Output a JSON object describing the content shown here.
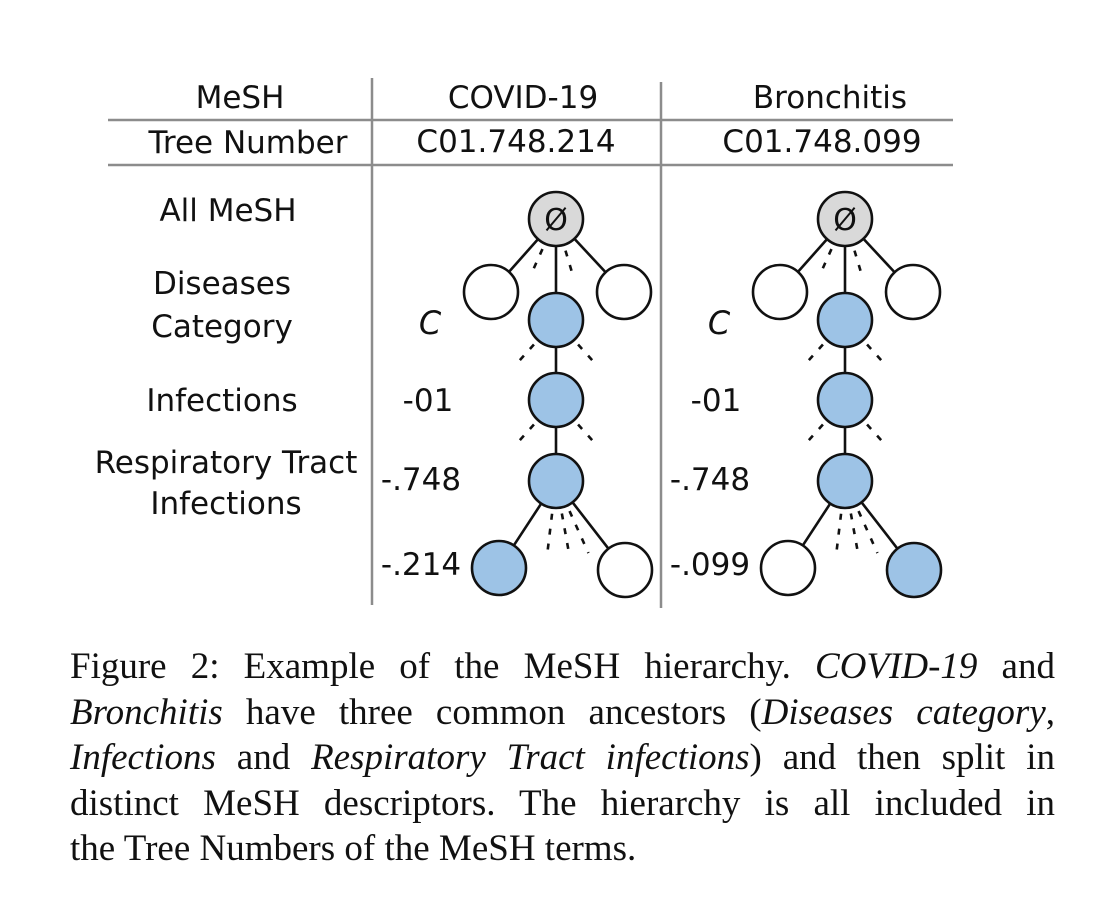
{
  "table": {
    "header": [
      "MeSH",
      "COVID-19",
      "Bronchitis"
    ],
    "tree_number_label": "Tree Number",
    "tree_numbers": [
      "C01.748.214",
      "C01.748.099"
    ]
  },
  "levels": [
    {
      "label_lines": [
        "All MeSH"
      ],
      "code_covid": "",
      "code_bronchitis": ""
    },
    {
      "label_lines": [
        "Diseases",
        "Category"
      ],
      "code_covid": "C",
      "code_bronchitis": "C"
    },
    {
      "label_lines": [
        "Infections"
      ],
      "code_covid": "-01",
      "code_bronchitis": "-01"
    },
    {
      "label_lines": [
        "Respiratory Tract",
        "Infections"
      ],
      "code_covid": "-.748",
      "code_bronchitis": "-.748"
    },
    {
      "label_lines": [
        ""
      ],
      "code_covid": "-.214",
      "code_bronchitis": "-.099"
    }
  ],
  "root_symbol": "Ø",
  "colors": {
    "root_fill": "#d9d9d9",
    "highlight_fill": "#9dc3e6",
    "plain_fill": "#ffffff",
    "stroke": "#111111",
    "divider": "#8c8c8c"
  },
  "caption": {
    "lines": [
      [
        {
          "t": "Figure 2: Example of the MeSH hierarchy. "
        },
        {
          "t": "COVID-19",
          "i": true
        },
        {
          "t": " and"
        }
      ],
      [
        {
          "t": "Bronchitis",
          "i": true
        },
        {
          "t": " have three common ancestors ("
        },
        {
          "t": "Diseases category",
          "i": true
        },
        {
          "t": ","
        }
      ],
      [
        {
          "t": "Infections",
          "i": true
        },
        {
          "t": " and "
        },
        {
          "t": "Respiratory Tract infections",
          "i": true
        },
        {
          "t": ") and then split in"
        }
      ],
      [
        {
          "t": "distinct MeSH descriptors. The hierarchy is all included in"
        }
      ],
      [
        {
          "t": "the Tree Numbers of the MeSH terms."
        }
      ]
    ]
  }
}
